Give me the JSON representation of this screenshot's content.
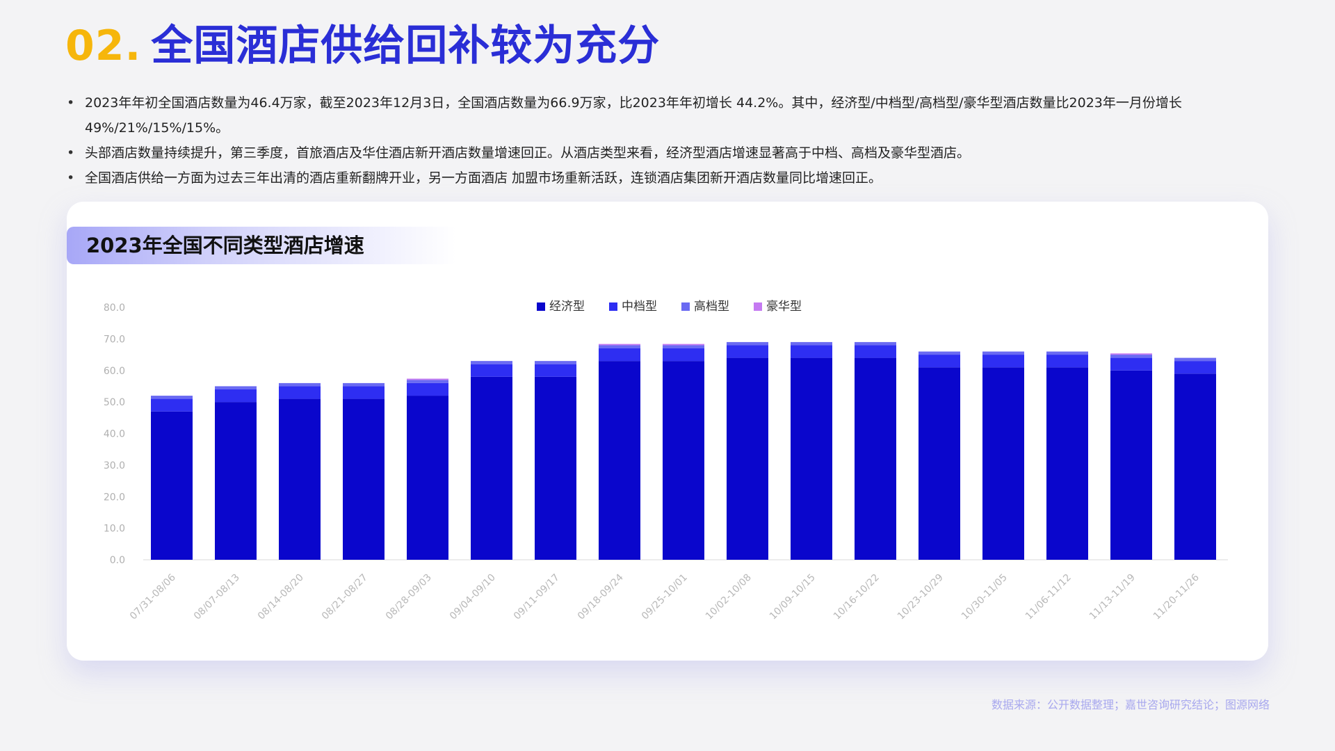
{
  "header": {
    "number": "02.",
    "title": "全国酒店供给回补较为充分"
  },
  "bullets": [
    "2023年年初全国酒店数量为46.4万家，截至2023年12月3日，全国酒店数量为66.9万家，比2023年年初增长  44.2%。其中，经济型/中档型/高档型/豪华型酒店数量比2023年一月份增长49%/21%/15%/15%。",
    "头部酒店数量持续提升，第三季度，首旅酒店及华住酒店新开酒店数量增速回正。从酒店类型来看，经济型酒店增速显著高于中档、高档及豪华型酒店。",
    "全国酒店供给一方面为过去三年出清的酒店重新翻牌开业，另一方面酒店 加盟市场重新活跃，连锁酒店集团新开酒店数量同比增速回正。"
  ],
  "source": "数据来源：公开数据整理；嘉世咨询研究结论；图源网络",
  "chart_data": {
    "type": "bar",
    "stacked": true,
    "title": "2023年全国不同类型酒店增速",
    "xlabel": "",
    "ylabel": "",
    "ylim": [
      0,
      80
    ],
    "yticks": [
      "0.0",
      "10.0",
      "20.0",
      "30.0",
      "40.0",
      "50.0",
      "60.0",
      "70.0",
      "80.0"
    ],
    "grid": false,
    "legend_position": "top-center",
    "categories": [
      "07/31-08/06",
      "08/07-08/13",
      "08/14-08/20",
      "08/21-08/27",
      "08/28-09/03",
      "09/04-09/10",
      "09/11-09/17",
      "09/18-09/24",
      "09/25-10/01",
      "10/02-10/08",
      "10/09-10/15",
      "10/16-10/22",
      "10/23-10/29",
      "10/30-11/05",
      "11/06-11/12",
      "11/13-11/19",
      "11/20-11/26"
    ],
    "series": [
      {
        "name": "经济型",
        "color": "#0a06cc",
        "values": [
          47,
          50,
          51,
          51,
          52,
          58,
          58,
          63,
          63,
          64,
          64,
          64,
          61,
          61,
          61,
          60,
          59
        ]
      },
      {
        "name": "中档型",
        "color": "#2e2ef2",
        "values": [
          4,
          4,
          4,
          4,
          4,
          4,
          4,
          4,
          4,
          4,
          4,
          4,
          4,
          4,
          4,
          4,
          4
        ]
      },
      {
        "name": "高档型",
        "color": "#6a6af2",
        "values": [
          1,
          1,
          1,
          1,
          1,
          1,
          1,
          1,
          1,
          1,
          1,
          1,
          1,
          1,
          1,
          1,
          1
        ]
      },
      {
        "name": "豪华型",
        "color": "#c57af2",
        "values": [
          0,
          0,
          0,
          0,
          0.4,
          0,
          0,
          0.4,
          0.4,
          0,
          0,
          0,
          0,
          0,
          0,
          0.4,
          0
        ]
      }
    ]
  }
}
